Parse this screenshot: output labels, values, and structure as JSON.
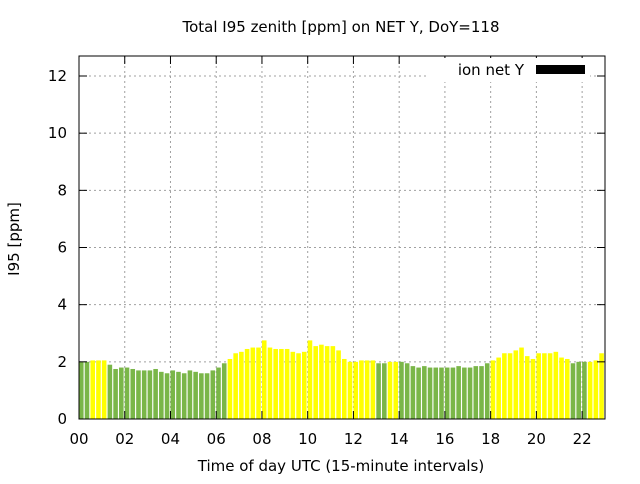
{
  "chart_data": {
    "type": "bar",
    "title": "Total I95 zenith [ppm] on NET Y, DoY=118",
    "xlabel": "Time of day UTC (15-minute intervals)",
    "ylabel": "I95 [ppm]",
    "x_unit": "hours",
    "xlim": [
      0,
      23
    ],
    "ylim": [
      0,
      12.7
    ],
    "x_ticks": [
      {
        "value": 0,
        "label": "00"
      },
      {
        "value": 2,
        "label": "02"
      },
      {
        "value": 4,
        "label": "04"
      },
      {
        "value": 6,
        "label": "06"
      },
      {
        "value": 8,
        "label": "08"
      },
      {
        "value": 10,
        "label": "10"
      },
      {
        "value": 12,
        "label": "12"
      },
      {
        "value": 14,
        "label": "14"
      },
      {
        "value": 16,
        "label": "16"
      },
      {
        "value": 18,
        "label": "18"
      },
      {
        "value": 20,
        "label": "20"
      },
      {
        "value": 22,
        "label": "22"
      }
    ],
    "y_ticks": [
      {
        "value": 0,
        "label": "0"
      },
      {
        "value": 2,
        "label": "2"
      },
      {
        "value": 4,
        "label": "4"
      },
      {
        "value": 6,
        "label": "6"
      },
      {
        "value": 8,
        "label": "8"
      },
      {
        "value": 10,
        "label": "10"
      },
      {
        "value": 12,
        "label": "12"
      }
    ],
    "grid": true,
    "legend": {
      "label": "ion net Y",
      "position": "top-right",
      "swatch_color": "#000000"
    },
    "colors": {
      "green": "#7ab648",
      "yellow": "#ffff00",
      "grid": "#a0a0a0",
      "axis": "#000000"
    },
    "interval_hours": 0.25,
    "values": [
      2.0,
      2.0,
      2.05,
      2.05,
      2.05,
      1.9,
      1.75,
      1.8,
      1.8,
      1.75,
      1.7,
      1.7,
      1.7,
      1.75,
      1.65,
      1.6,
      1.7,
      1.65,
      1.6,
      1.7,
      1.65,
      1.6,
      1.6,
      1.7,
      1.8,
      1.95,
      2.1,
      2.3,
      2.35,
      2.45,
      2.5,
      2.5,
      2.75,
      2.5,
      2.45,
      2.45,
      2.45,
      2.35,
      2.3,
      2.35,
      2.75,
      2.55,
      2.6,
      2.55,
      2.55,
      2.4,
      2.1,
      2.0,
      2.0,
      2.05,
      2.05,
      2.05,
      1.95,
      1.95,
      2.0,
      2.0,
      2.0,
      1.95,
      1.85,
      1.8,
      1.85,
      1.8,
      1.8,
      1.8,
      1.8,
      1.8,
      1.85,
      1.8,
      1.8,
      1.85,
      1.85,
      1.95,
      2.05,
      2.15,
      2.3,
      2.3,
      2.4,
      2.5,
      2.2,
      2.1,
      2.3,
      2.3,
      2.3,
      2.35,
      2.15,
      2.1,
      1.95,
      2.0,
      2.0,
      2.0,
      2.05,
      2.3
    ],
    "bar_colors": [
      "green",
      "green",
      "yellow",
      "yellow",
      "yellow",
      "green",
      "green",
      "green",
      "green",
      "green",
      "green",
      "green",
      "green",
      "green",
      "green",
      "green",
      "green",
      "green",
      "green",
      "green",
      "green",
      "green",
      "green",
      "green",
      "green",
      "green",
      "yellow",
      "yellow",
      "yellow",
      "yellow",
      "yellow",
      "yellow",
      "yellow",
      "yellow",
      "yellow",
      "yellow",
      "yellow",
      "yellow",
      "yellow",
      "yellow",
      "yellow",
      "yellow",
      "yellow",
      "yellow",
      "yellow",
      "yellow",
      "yellow",
      "yellow",
      "yellow",
      "yellow",
      "yellow",
      "yellow",
      "green",
      "green",
      "yellow",
      "yellow",
      "green",
      "green",
      "green",
      "green",
      "green",
      "green",
      "green",
      "green",
      "green",
      "green",
      "green",
      "green",
      "green",
      "green",
      "green",
      "green",
      "yellow",
      "yellow",
      "yellow",
      "yellow",
      "yellow",
      "yellow",
      "yellow",
      "yellow",
      "yellow",
      "yellow",
      "yellow",
      "yellow",
      "yellow",
      "yellow",
      "green",
      "green",
      "green",
      "yellow",
      "yellow",
      "yellow"
    ]
  }
}
